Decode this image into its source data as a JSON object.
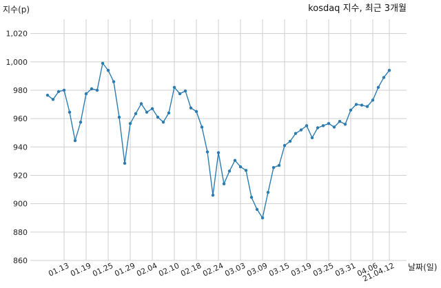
{
  "chart_data": {
    "type": "line",
    "title": "kosdaq 지수, 최근 3개월",
    "ylabel": "지수(p)",
    "xlabel": "날짜(일)",
    "ylim": [
      860,
      1030
    ],
    "yticks": [
      860,
      880,
      900,
      920,
      940,
      960,
      980,
      1000,
      1020
    ],
    "ytick_labels": [
      "860",
      "880",
      "900",
      "920",
      "940",
      "960",
      "980",
      "1,000",
      "1,020"
    ],
    "xticks": [
      {
        "index": 3,
        "label": "01.13"
      },
      {
        "index": 7,
        "label": "01.19"
      },
      {
        "index": 11,
        "label": "01.25"
      },
      {
        "index": 15,
        "label": "01.29"
      },
      {
        "index": 19,
        "label": "02.04"
      },
      {
        "index": 23,
        "label": "02.10"
      },
      {
        "index": 27,
        "label": "02.18"
      },
      {
        "index": 31,
        "label": "02.24"
      },
      {
        "index": 35,
        "label": "03.03"
      },
      {
        "index": 39,
        "label": "03.09"
      },
      {
        "index": 43,
        "label": "03.15"
      },
      {
        "index": 47,
        "label": "03.19"
      },
      {
        "index": 51,
        "label": "03.25"
      },
      {
        "index": 55,
        "label": "03.31"
      },
      {
        "index": 59,
        "label": "04.06"
      },
      {
        "index": 62,
        "label": "21.04.12"
      }
    ],
    "grid": true,
    "line_color": "#2b7bb0",
    "series": [
      {
        "values": [
          976.5,
          973.5,
          979,
          980,
          964.5,
          944.5,
          957.5,
          977.5,
          981,
          980,
          999,
          994,
          986,
          961,
          928.5,
          956.5,
          963.5,
          970.5,
          964.5,
          967,
          961,
          957.5,
          964,
          982,
          977.5,
          979.5,
          967.5,
          965,
          954,
          936.5,
          906,
          936,
          914,
          923,
          930.5,
          926,
          923.5,
          904.5,
          896,
          890,
          908,
          925.5,
          927,
          941,
          944,
          949.5,
          952,
          955,
          946.5,
          953.5,
          955,
          956.5,
          954,
          958,
          956,
          966,
          970,
          969.5,
          968.5,
          973,
          982,
          989,
          994
        ]
      }
    ]
  }
}
